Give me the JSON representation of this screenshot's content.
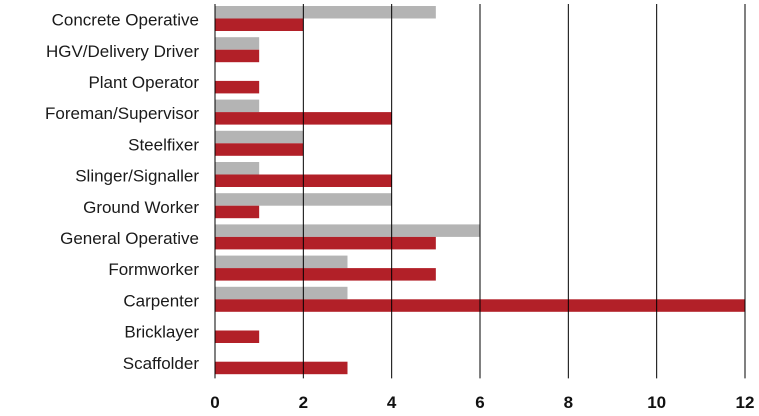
{
  "chart_data": {
    "type": "bar",
    "orientation": "horizontal",
    "categories": [
      "Concrete Operative",
      "HGV/Delivery Driver",
      "Plant Operator",
      "Foreman/Supervisor",
      "Steelfixer",
      "Slinger/Signaller",
      "Ground Worker",
      "General Operative",
      "Formworker",
      "Carpenter",
      "Bricklayer",
      "Scaffolder"
    ],
    "series": [
      {
        "color": "#b4b4b4",
        "values": [
          5,
          1,
          0,
          1,
          2,
          1,
          4,
          6,
          3,
          3,
          0,
          0
        ]
      },
      {
        "color": "#b22028",
        "values": [
          2,
          1,
          1,
          4,
          2,
          4,
          1,
          5,
          5,
          12,
          1,
          3
        ]
      }
    ],
    "xlim": [
      0,
      12
    ],
    "xticks": [
      "0",
      "2",
      "4",
      "6",
      "8",
      "10",
      "12"
    ],
    "grid": true,
    "legend": "none",
    "title": "",
    "xlabel": "",
    "ylabel": ""
  }
}
